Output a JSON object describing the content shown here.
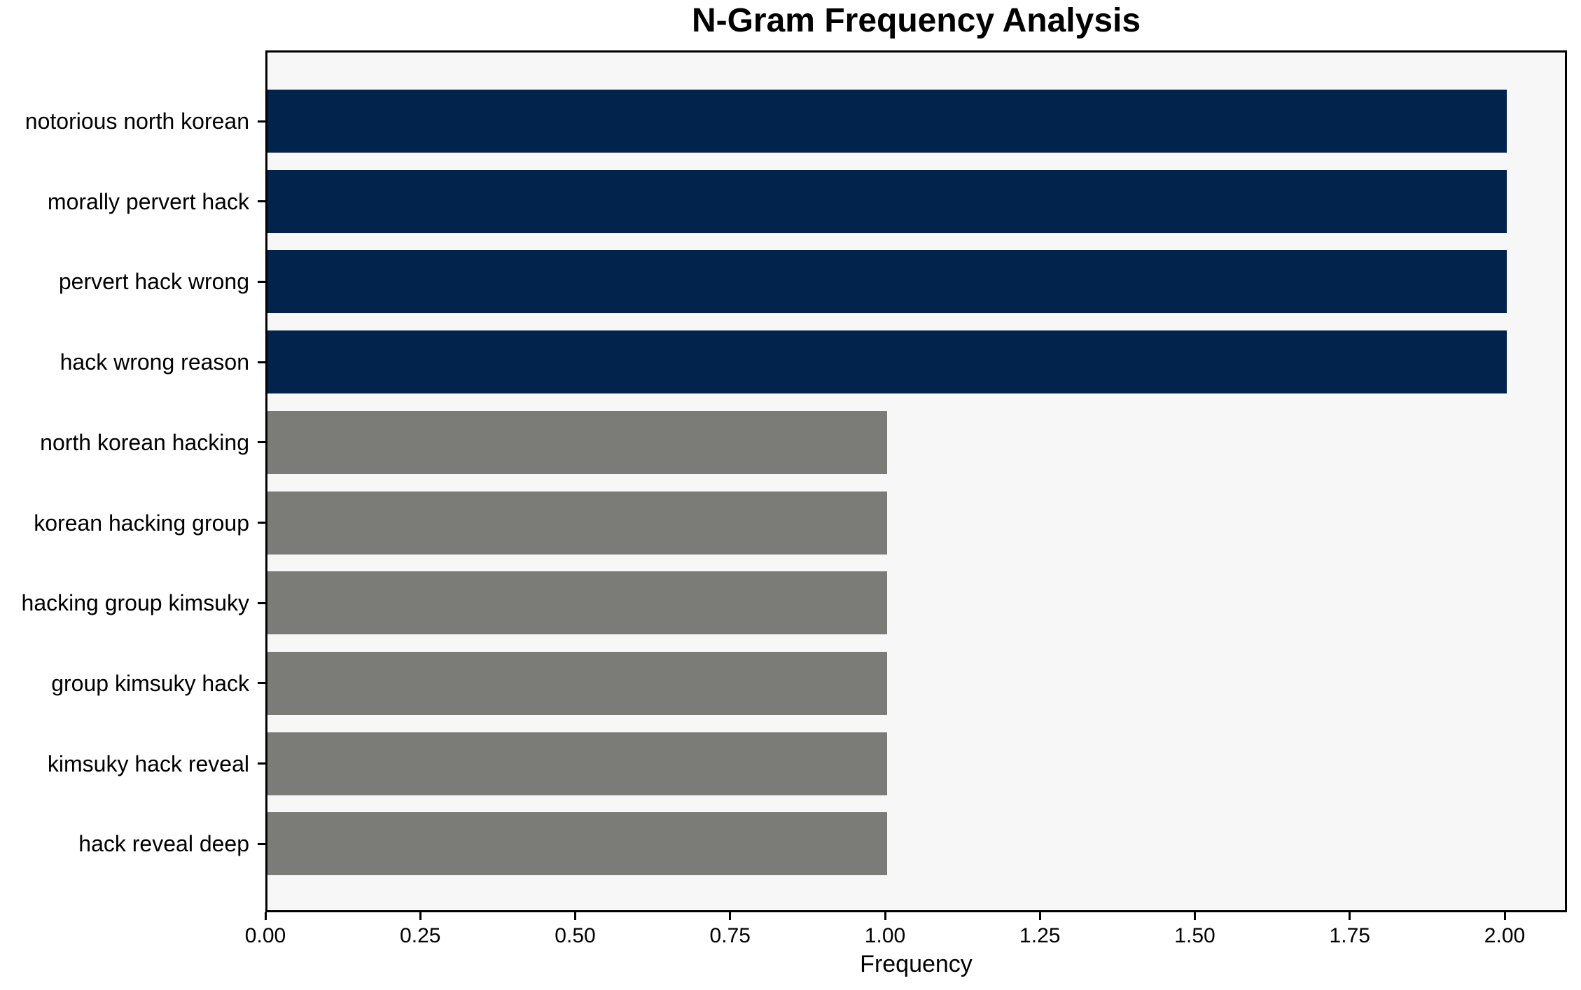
{
  "chart_data": {
    "type": "bar",
    "orientation": "horizontal",
    "title": "N-Gram Frequency Analysis",
    "xlabel": "Frequency",
    "ylabel": "",
    "categories": [
      "notorious north korean",
      "morally pervert hack",
      "pervert hack wrong",
      "hack wrong reason",
      "north korean hacking",
      "korean hacking group",
      "hacking group kimsuky",
      "group kimsuky hack",
      "kimsuky hack reveal",
      "hack reveal deep"
    ],
    "values": [
      2,
      2,
      2,
      2,
      1,
      1,
      1,
      1,
      1,
      1
    ],
    "bar_colors": [
      "#02234c",
      "#02234c",
      "#02234c",
      "#02234c",
      "#7b7b78",
      "#7b7b78",
      "#7b7b78",
      "#7b7b78",
      "#7b7b78",
      "#7b7b78"
    ],
    "x_ticks": [
      0,
      0.25,
      0.5,
      0.75,
      1,
      1.25,
      1.5,
      1.75,
      2
    ],
    "x_tick_labels": [
      "0.00",
      "0.25",
      "0.50",
      "0.75",
      "1.00",
      "1.25",
      "1.50",
      "1.75",
      "2.00"
    ],
    "xlim": [
      0,
      2.1
    ],
    "grid": false,
    "legend_position": "none",
    "colors": {
      "highlight_bar": "#02234c",
      "default_bar": "#7b7b78",
      "plot_background": "#f7f7f8",
      "figure_background": "#ffffff",
      "axis": "#000000",
      "text": "#000000"
    }
  }
}
